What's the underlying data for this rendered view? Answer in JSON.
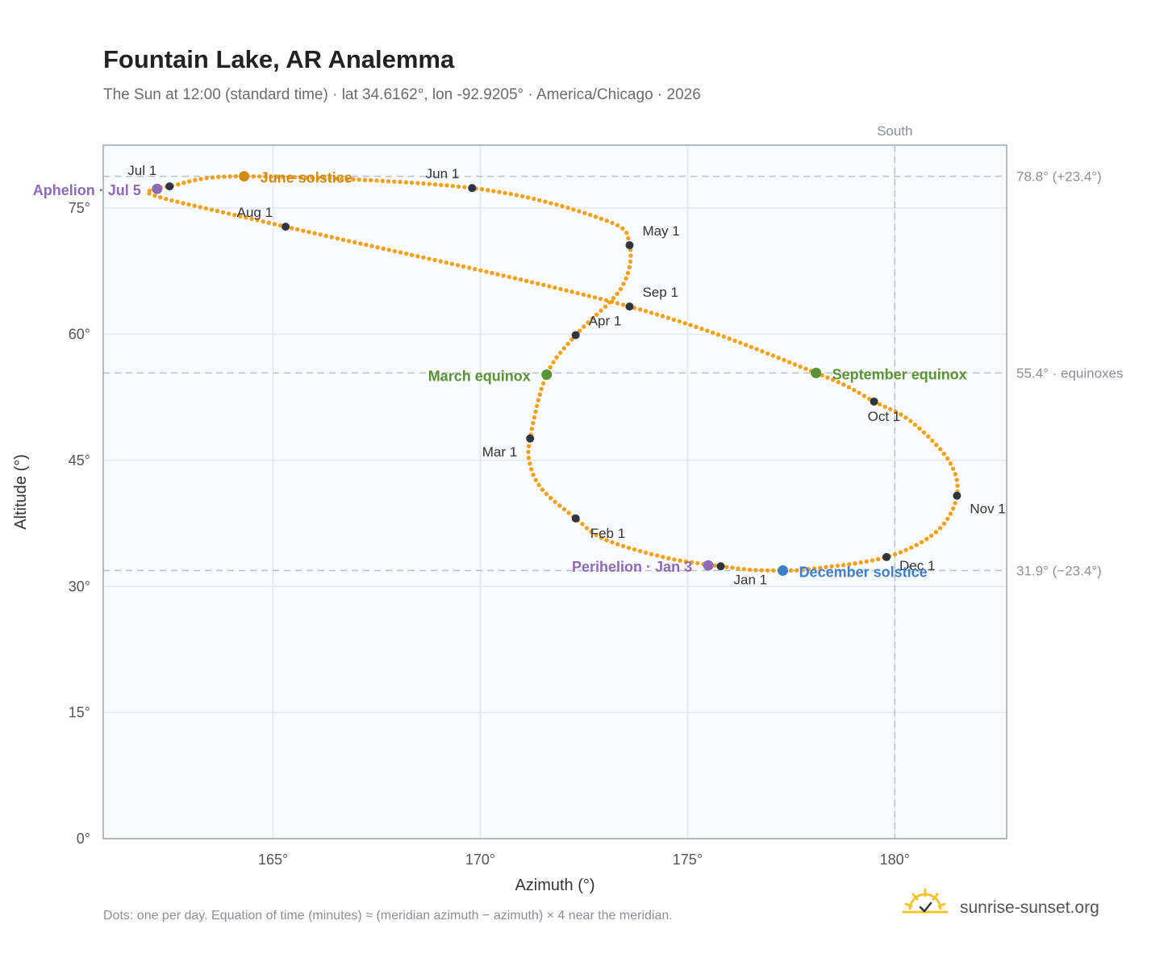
{
  "header": {
    "title": "Fountain Lake, AR Analemma",
    "subtitle": "The Sun at 12:00 (standard time) · lat 34.6162°, lon -92.9205° · America/Chicago · 2026"
  },
  "footer": {
    "note": "Dots: one per day. Equation of time (minutes) ≈ (meridian azimuth − azimuth) × 4 near the meridian.",
    "brand": "sunrise-sunset.org"
  },
  "colors": {
    "path": "#f4a21d",
    "month_marker": "#2f3540",
    "equinox": "#5a9236",
    "june_solstice": "#cf8c12",
    "december_solstice": "#3f7fc7",
    "apsis": "#8d6ab4",
    "plot_bg": "#f9fbfd",
    "grid": "#e3e8ee",
    "frame": "#9aa4b1",
    "ref_line": "#b6c0ca"
  },
  "chart_data": {
    "type": "scatter",
    "xlabel": "Azimuth (°)",
    "ylabel": "Altitude (°)",
    "xlim": [
      160.9,
      182.7
    ],
    "ylim": [
      0,
      82.5
    ],
    "x_ticks": [
      165,
      170,
      175,
      180
    ],
    "x_tick_labels": [
      "165°",
      "170°",
      "175°",
      "180°"
    ],
    "y_ticks": [
      0,
      15,
      30,
      45,
      60,
      75
    ],
    "y_tick_labels": [
      "0°",
      "15°",
      "30°",
      "45°",
      "60°",
      "75°"
    ],
    "grid": true,
    "series": [
      {
        "points_note": "one per day",
        "anchors": [
          {
            "x": 175.8,
            "y": 32.4
          },
          {
            "x": 174.5,
            "y": 33.4
          },
          {
            "x": 173.0,
            "y": 35.6
          },
          {
            "x": 172.3,
            "y": 38.1
          },
          {
            "x": 171.5,
            "y": 41.5
          },
          {
            "x": 171.2,
            "y": 44.5
          },
          {
            "x": 171.2,
            "y": 47.6
          },
          {
            "x": 171.6,
            "y": 55.2
          },
          {
            "x": 172.3,
            "y": 59.9
          },
          {
            "x": 173.4,
            "y": 65.5
          },
          {
            "x": 173.6,
            "y": 70.6
          },
          {
            "x": 173.0,
            "y": 73.6
          },
          {
            "x": 169.8,
            "y": 77.4
          },
          {
            "x": 164.3,
            "y": 78.8
          },
          {
            "x": 162.5,
            "y": 77.6
          },
          {
            "x": 162.2,
            "y": 77.3
          },
          {
            "x": 162.2,
            "y": 76.4
          },
          {
            "x": 165.3,
            "y": 72.8
          },
          {
            "x": 173.6,
            "y": 63.3
          },
          {
            "x": 178.1,
            "y": 55.4
          },
          {
            "x": 179.5,
            "y": 52.0
          },
          {
            "x": 180.4,
            "y": 49.6
          },
          {
            "x": 181.3,
            "y": 45.0
          },
          {
            "x": 181.5,
            "y": 40.8
          },
          {
            "x": 181.0,
            "y": 36.5
          },
          {
            "x": 179.8,
            "y": 33.5
          },
          {
            "x": 178.0,
            "y": 32.1
          },
          {
            "x": 177.3,
            "y": 31.9
          },
          {
            "x": 176.5,
            "y": 32.0
          },
          {
            "x": 175.8,
            "y": 32.4
          }
        ]
      }
    ],
    "reference_lines": [
      {
        "orientation": "horizontal",
        "y": 78.8,
        "label": "78.8° (+23.4°)"
      },
      {
        "orientation": "horizontal",
        "y": 55.4,
        "label": "55.4° · equinoxes"
      },
      {
        "orientation": "horizontal",
        "y": 31.9,
        "label": "31.9° (−23.4°)"
      },
      {
        "orientation": "vertical",
        "x": 180,
        "label": "South"
      }
    ],
    "month_markers": [
      {
        "label": "Jan 1",
        "x": 175.8,
        "y": 32.4
      },
      {
        "label": "Feb 1",
        "x": 172.3,
        "y": 38.1
      },
      {
        "label": "Mar 1",
        "x": 171.2,
        "y": 47.6
      },
      {
        "label": "Apr 1",
        "x": 172.3,
        "y": 59.9
      },
      {
        "label": "May 1",
        "x": 173.6,
        "y": 70.6
      },
      {
        "label": "Jun 1",
        "x": 169.8,
        "y": 77.4
      },
      {
        "label": "Jul 1",
        "x": 162.5,
        "y": 77.6
      },
      {
        "label": "Aug 1",
        "x": 165.3,
        "y": 72.8
      },
      {
        "label": "Sep 1",
        "x": 173.6,
        "y": 63.3
      },
      {
        "label": "Oct 1",
        "x": 179.5,
        "y": 52.0
      },
      {
        "label": "Nov 1",
        "x": 181.5,
        "y": 40.8
      },
      {
        "label": "Dec 1",
        "x": 179.8,
        "y": 33.5
      }
    ],
    "events": [
      {
        "label": "June solstice",
        "x": 164.3,
        "y": 78.8,
        "color_key": "june_solstice"
      },
      {
        "label": "Aphelion · Jul 5",
        "x": 162.2,
        "y": 77.3,
        "color_key": "apsis"
      },
      {
        "label": "March equinox",
        "x": 171.6,
        "y": 55.2,
        "color_key": "equinox"
      },
      {
        "label": "September equinox",
        "x": 178.1,
        "y": 55.4,
        "color_key": "equinox"
      },
      {
        "label": "Perihelion · Jan 3",
        "x": 175.5,
        "y": 32.5,
        "color_key": "apsis"
      },
      {
        "label": "December solstice",
        "x": 177.3,
        "y": 31.9,
        "color_key": "december_solstice"
      }
    ]
  }
}
